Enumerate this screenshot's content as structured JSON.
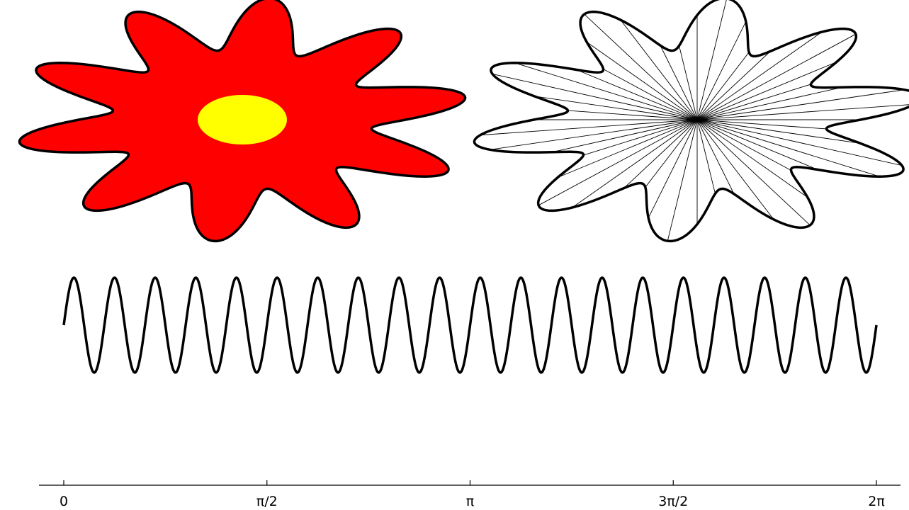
{
  "colors": {
    "flower_fill": "#ff0000",
    "flower_center": "#ffff00",
    "stroke": "#000000",
    "background": "#ffffff"
  },
  "flower": {
    "petals": 10,
    "petal_amplitude": 0.27,
    "spoke_count": 48
  },
  "chart_data": {
    "type": "line",
    "x_range": [
      0,
      6.283185307179586
    ],
    "series": [
      {
        "function": "sin(20x)",
        "frequency": 20,
        "amplitude": 1
      }
    ],
    "ticks": [
      0,
      1.5707963267948966,
      3.141592653589793,
      4.71238898038469,
      6.283185307179586
    ],
    "tick_labels": [
      "0",
      "π/2",
      "π",
      "3π/2",
      "2π"
    ],
    "grid": false
  }
}
